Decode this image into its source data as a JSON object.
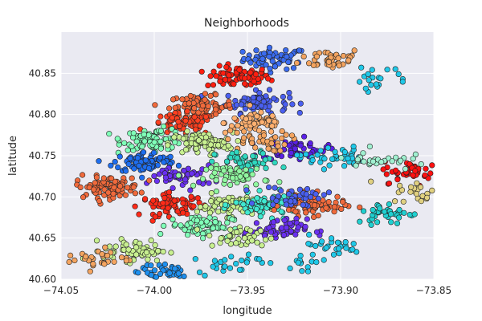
{
  "chart_data": {
    "type": "scatter",
    "title": "Neighborhoods",
    "xlabel": "longitude",
    "ylabel": "latitude",
    "xlim": [
      -74.05,
      -73.85
    ],
    "ylim": [
      40.6,
      40.9
    ],
    "xticks": [
      -74.05,
      -74.0,
      -73.95,
      -73.9,
      -73.85
    ],
    "xtick_labels": [
      "−74.05",
      "−74.00",
      "−73.95",
      "−73.90",
      "−73.85"
    ],
    "yticks": [
      40.6,
      40.65,
      40.7,
      40.75,
      40.8,
      40.85
    ],
    "ytick_labels": [
      "40.60",
      "40.65",
      "40.70",
      "40.75",
      "40.80",
      "40.85"
    ],
    "grid": true,
    "legend": "none",
    "colormap": "jet",
    "background_color": "#eaeaf2",
    "grid_color": "#ffffff",
    "clusters": [
      {
        "center": [
          -73.935,
          40.868
        ],
        "color": "#3b6cf0",
        "count": 60
      },
      {
        "center": [
          -73.955,
          40.845
        ],
        "color": "#ff1e10",
        "count": 70
      },
      {
        "center": [
          -73.905,
          40.868
        ],
        "color": "#f4a460",
        "count": 40
      },
      {
        "center": [
          -73.945,
          40.815
        ],
        "color": "#4a5ff0",
        "count": 70
      },
      {
        "center": [
          -73.975,
          40.81
        ],
        "color": "#f06a3c",
        "count": 80
      },
      {
        "center": [
          -73.945,
          40.79
        ],
        "color": "#ffb070",
        "count": 60
      },
      {
        "center": [
          -73.985,
          40.788
        ],
        "color": "#ff4020",
        "count": 60
      },
      {
        "center": [
          -74.0,
          40.77
        ],
        "color": "#80ffb8",
        "count": 90
      },
      {
        "center": [
          -73.975,
          40.765
        ],
        "color": "#c8f090",
        "count": 90
      },
      {
        "center": [
          -74.005,
          40.742
        ],
        "color": "#1e6ef0",
        "count": 80
      },
      {
        "center": [
          -73.925,
          40.758
        ],
        "color": "#5a20e8",
        "count": 60
      },
      {
        "center": [
          -73.945,
          40.768
        ],
        "color": "#f4a460",
        "count": 40
      },
      {
        "center": [
          -73.905,
          40.748
        ],
        "color": "#20c8e8",
        "count": 40
      },
      {
        "center": [
          -73.95,
          40.742
        ],
        "color": "#30d8c0",
        "count": 50
      },
      {
        "center": [
          -73.985,
          40.725
        ],
        "color": "#6a30f0",
        "count": 50
      },
      {
        "center": [
          -74.025,
          40.712
        ],
        "color": "#f06a3c",
        "count": 90
      },
      {
        "center": [
          -73.955,
          40.725
        ],
        "color": "#90f8a0",
        "count": 60
      },
      {
        "center": [
          -73.99,
          40.69
        ],
        "color": "#ff2a18",
        "count": 70
      },
      {
        "center": [
          -73.96,
          40.69
        ],
        "color": "#c8f090",
        "count": 80
      },
      {
        "center": [
          -73.94,
          40.69
        ],
        "color": "#40e8d0",
        "count": 80
      },
      {
        "center": [
          -73.915,
          40.69
        ],
        "color": "#f06a3c",
        "count": 70
      },
      {
        "center": [
          -73.925,
          40.7
        ],
        "color": "#4a5ff0",
        "count": 40
      },
      {
        "center": [
          -73.975,
          40.665
        ],
        "color": "#80ffb8",
        "count": 70
      },
      {
        "center": [
          -73.935,
          40.66
        ],
        "color": "#6a30f0",
        "count": 60
      },
      {
        "center": [
          -73.955,
          40.65
        ],
        "color": "#c8f090",
        "count": 40
      },
      {
        "center": [
          -74.01,
          40.635
        ],
        "color": "#c8f090",
        "count": 60
      },
      {
        "center": [
          -74.03,
          40.625
        ],
        "color": "#f4a460",
        "count": 30
      },
      {
        "center": [
          -73.995,
          40.61
        ],
        "color": "#1e90f0",
        "count": 40
      },
      {
        "center": [
          -73.86,
          40.73
        ],
        "color": "#ff1010",
        "count": 50
      },
      {
        "center": [
          -73.855,
          40.705
        ],
        "color": "#e0d080",
        "count": 30
      },
      {
        "center": [
          -73.875,
          40.68
        ],
        "color": "#20d0d0",
        "count": 40
      },
      {
        "center": [
          -73.88,
          40.745
        ],
        "color": "#a0f0d0",
        "count": 30
      },
      {
        "center": [
          -73.88,
          40.845
        ],
        "color": "#20c8e8",
        "count": 20
      },
      {
        "center": [
          -73.905,
          40.64
        ],
        "color": "#20c8e8",
        "count": 25
      },
      {
        "center": [
          -73.92,
          40.62
        ],
        "color": "#20c8e8",
        "count": 15
      },
      {
        "center": [
          -73.96,
          40.62
        ],
        "color": "#20c8e8",
        "count": 25
      }
    ]
  }
}
